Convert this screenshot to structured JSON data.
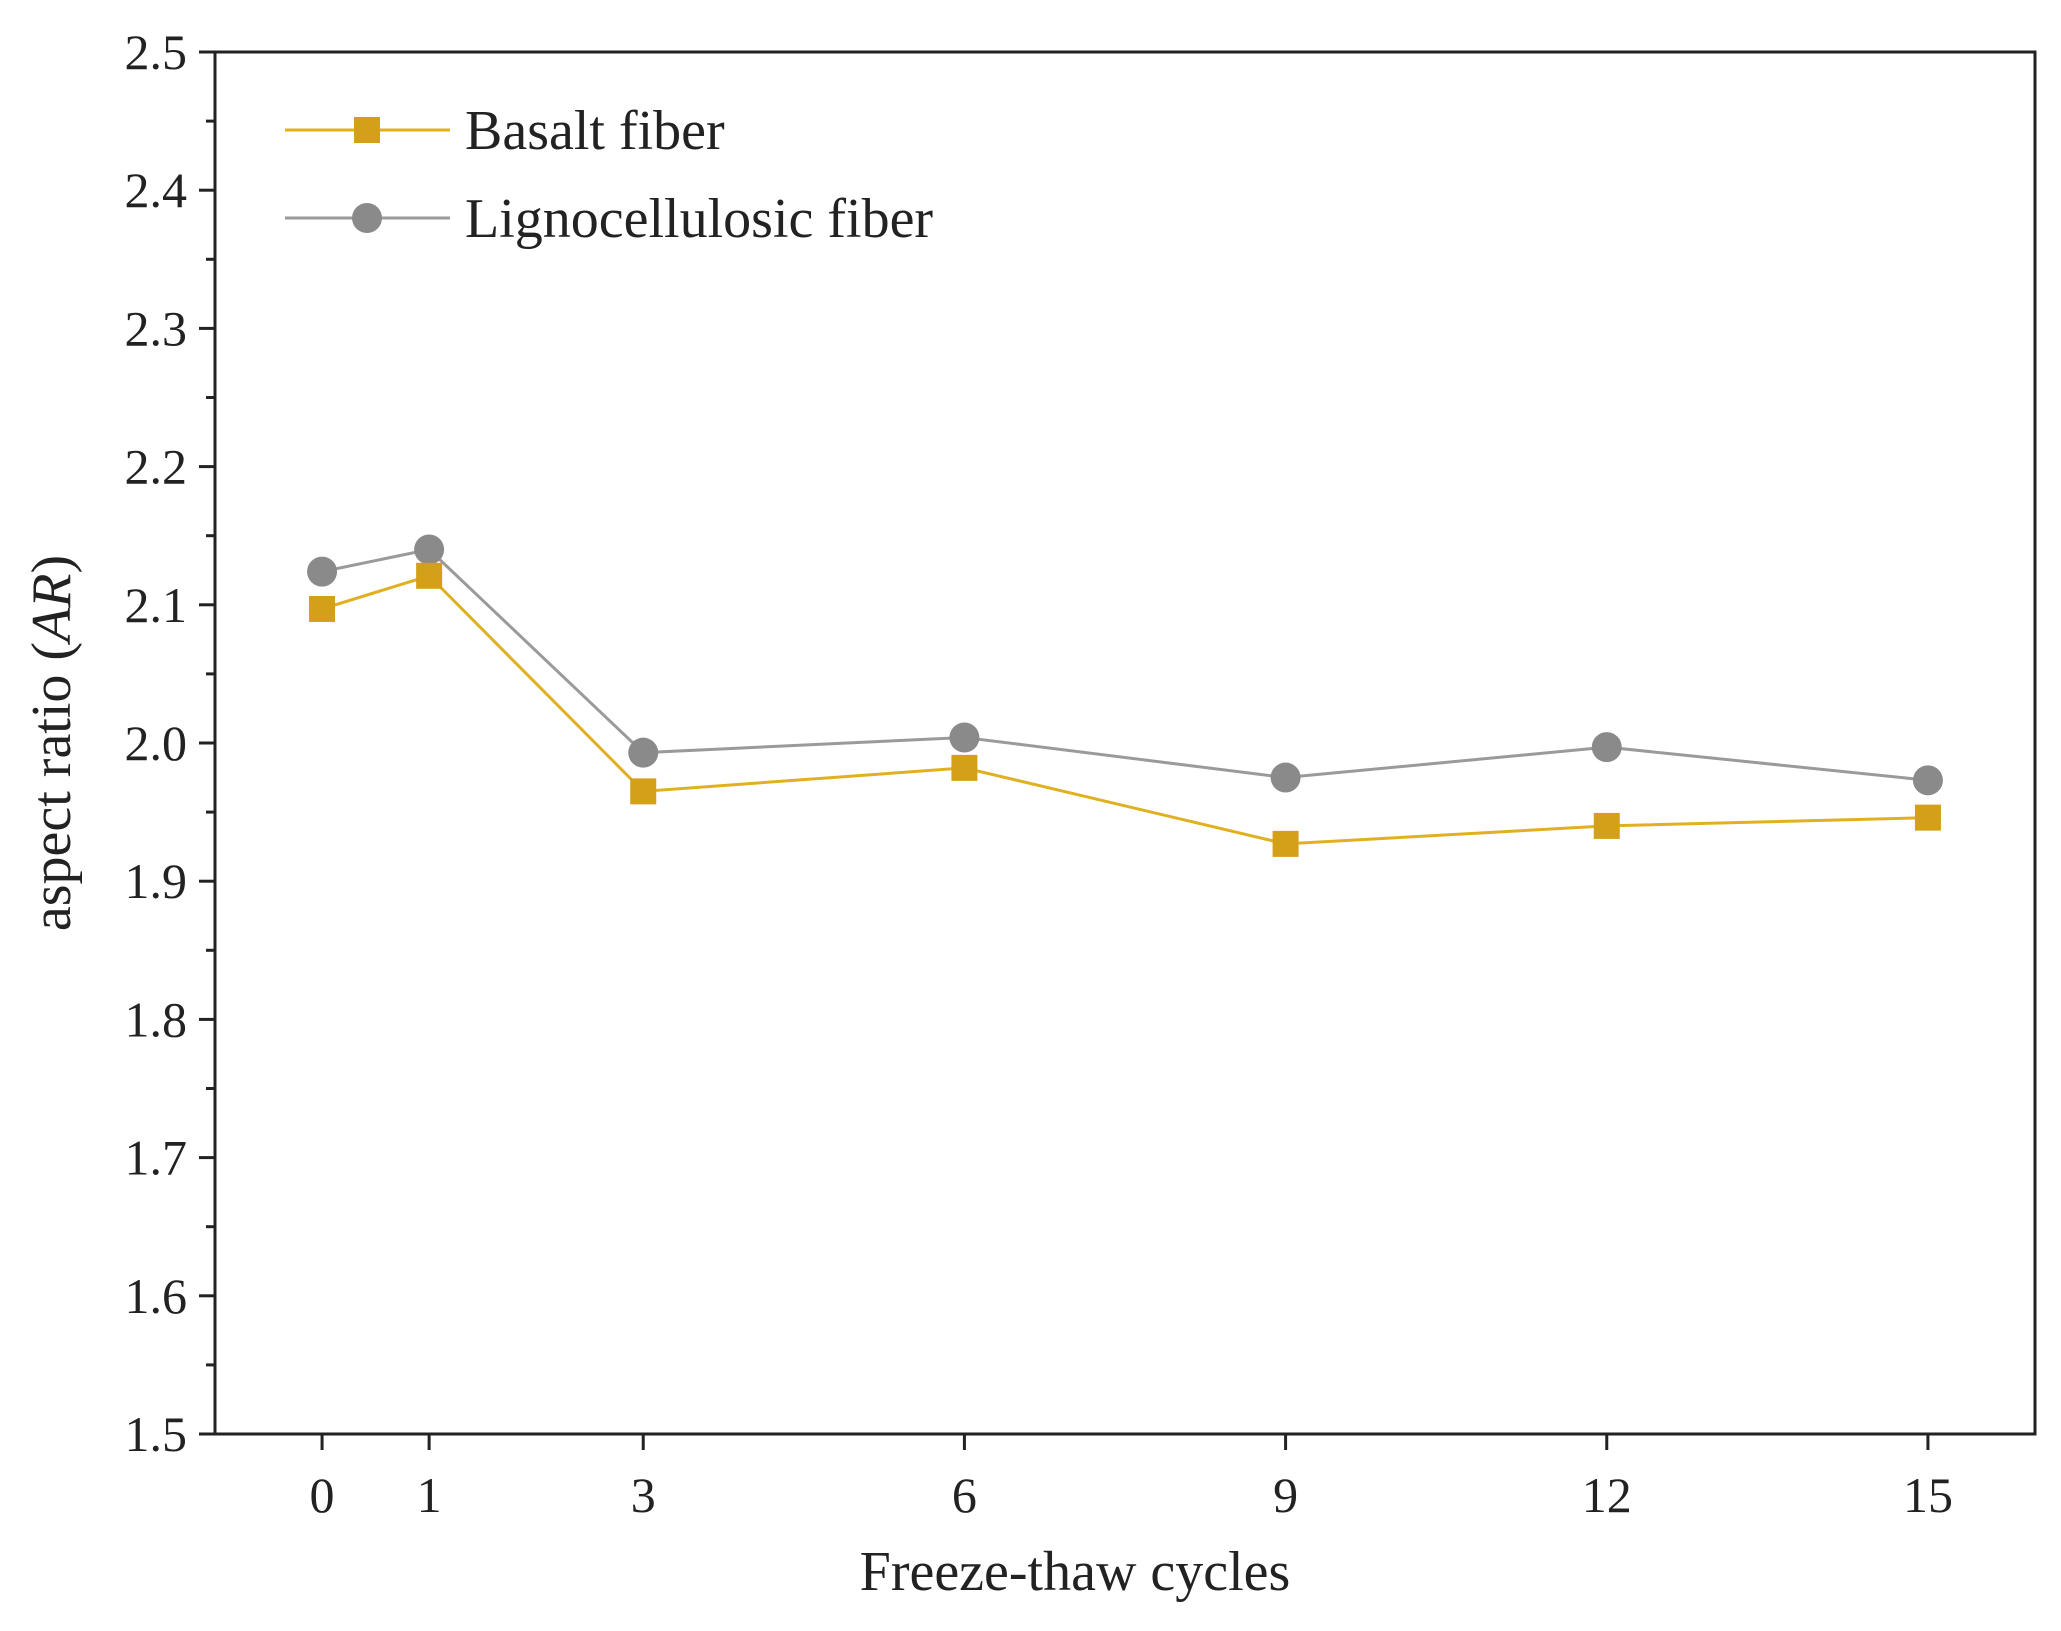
{
  "chart_data": {
    "type": "line",
    "title": "",
    "xlabel": "Freeze-thaw cycles",
    "ylabel_prefix": "aspect ratio (",
    "ylabel_italic": "AR",
    "ylabel_suffix": ")",
    "x": [
      0,
      1,
      3,
      6,
      9,
      12,
      15
    ],
    "x_tick_labels": [
      "0",
      "1",
      "3",
      "6",
      "9",
      "12",
      "15"
    ],
    "xlim": [
      -1,
      16
    ],
    "ylim": [
      1.5,
      2.5
    ],
    "y_ticks": [
      1.5,
      1.6,
      1.7,
      1.8,
      1.9,
      2.0,
      2.1,
      2.2,
      2.3,
      2.4,
      2.5
    ],
    "y_tick_labels": [
      "1.5",
      "1.6",
      "1.7",
      "1.8",
      "1.9",
      "2.0",
      "2.1",
      "2.2",
      "2.3",
      "2.4",
      "2.5"
    ],
    "legend_position": "top-left",
    "grid": false,
    "series": [
      {
        "name": "Basalt fiber",
        "marker": "square",
        "color": "#D4A017",
        "line_color": "#E0B020",
        "values": [
          2.097,
          2.121,
          1.965,
          1.982,
          1.927,
          1.94,
          1.946
        ]
      },
      {
        "name": "Lignocellulosic fiber",
        "marker": "circle",
        "color": "#8A8A8A",
        "line_color": "#9A9A9A",
        "values": [
          2.124,
          2.14,
          1.993,
          2.004,
          1.975,
          1.997,
          1.973
        ]
      }
    ]
  }
}
